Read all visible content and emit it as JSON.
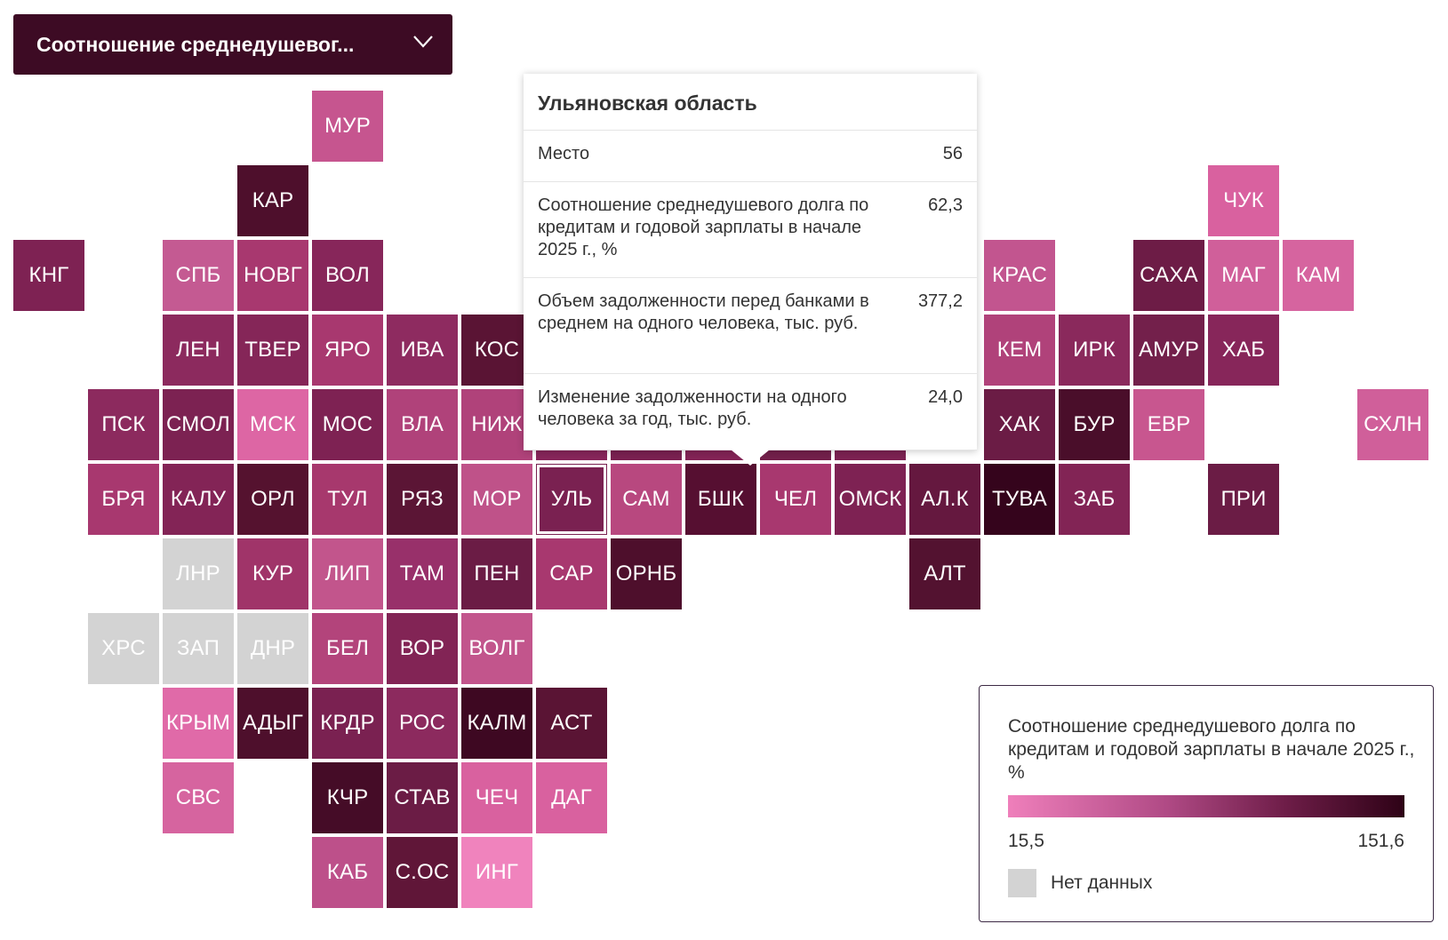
{
  "dropdown": {
    "label": "Соотношение среднедушевог...",
    "icon": "chevron-down-icon"
  },
  "colors": {
    "scale_min": "#ef7fbb",
    "scale_max": "#2e0216",
    "no_data": "#d3d3d3"
  },
  "map": {
    "tiles": [
      {
        "code": "МУР",
        "col": 4,
        "row": 0,
        "value": 40,
        "color": "#c6558f"
      },
      {
        "code": "КАР",
        "col": 3,
        "row": 1,
        "value": 120,
        "color": "#4e0f2c"
      },
      {
        "code": "ЧУК",
        "col": 16,
        "row": 1,
        "value": 30,
        "color": "#d9619f"
      },
      {
        "code": "КНГ",
        "col": 0,
        "row": 2,
        "value": 85,
        "color": "#7e2253"
      },
      {
        "code": "СПБ",
        "col": 2,
        "row": 2,
        "value": 45,
        "color": "#c45a92"
      },
      {
        "code": "НОВГ",
        "col": 3,
        "row": 2,
        "value": 62,
        "color": "#a8386f"
      },
      {
        "code": "ВОЛ",
        "col": 4,
        "row": 2,
        "value": 80,
        "color": "#87265a"
      },
      {
        "code": "КРАС",
        "col": 13,
        "row": 2,
        "value": 45,
        "color": "#c2558f"
      },
      {
        "code": "САХА",
        "col": 15,
        "row": 2,
        "value": 90,
        "color": "#6d1c46"
      },
      {
        "code": "МАГ",
        "col": 16,
        "row": 2,
        "value": 38,
        "color": "#d05f9a"
      },
      {
        "code": "КАМ",
        "col": 17,
        "row": 2,
        "value": 33,
        "color": "#d6649f"
      },
      {
        "code": "ЛЕН",
        "col": 2,
        "row": 3,
        "value": 78,
        "color": "#8c2a5e"
      },
      {
        "code": "ТВЕР",
        "col": 3,
        "row": 3,
        "value": 82,
        "color": "#852658"
      },
      {
        "code": "ЯРО",
        "col": 4,
        "row": 3,
        "value": 58,
        "color": "#a8386f"
      },
      {
        "code": "ИВА",
        "col": 5,
        "row": 3,
        "value": 75,
        "color": "#8e2b60"
      },
      {
        "code": "КОС",
        "col": 6,
        "row": 3,
        "value": 110,
        "color": "#5a1434"
      },
      {
        "code": "КЕМ",
        "col": 13,
        "row": 3,
        "value": 55,
        "color": "#b0427a"
      },
      {
        "code": "ИРК",
        "col": 14,
        "row": 3,
        "value": 75,
        "color": "#8a295c"
      },
      {
        "code": "АМУР",
        "col": 15,
        "row": 3,
        "value": 90,
        "color": "#73204b"
      },
      {
        "code": "ХАБ",
        "col": 16,
        "row": 3,
        "value": 80,
        "color": "#87265a"
      },
      {
        "code": "ПСК",
        "col": 1,
        "row": 4,
        "value": 78,
        "color": "#8c2a5e"
      },
      {
        "code": "СМОЛ",
        "col": 2,
        "row": 4,
        "value": 85,
        "color": "#7c2252"
      },
      {
        "code": "МСК",
        "col": 3,
        "row": 4,
        "value": 30,
        "color": "#dd66a4"
      },
      {
        "code": "МОС",
        "col": 4,
        "row": 4,
        "value": 85,
        "color": "#7e2253"
      },
      {
        "code": "ВЛА",
        "col": 5,
        "row": 4,
        "value": 55,
        "color": "#b0427a"
      },
      {
        "code": "НИЖ",
        "col": 6,
        "row": 4,
        "value": 55,
        "color": "#b0427a"
      },
      {
        "code": "",
        "col": 7,
        "row": 4,
        "value": 80,
        "color": "#87265a"
      },
      {
        "code": "",
        "col": 8,
        "row": 4,
        "value": 88,
        "color": "#7a2151"
      },
      {
        "code": "",
        "col": 9,
        "row": 4,
        "value": 80,
        "color": "#832456"
      },
      {
        "code": "",
        "col": 10,
        "row": 4,
        "value": 90,
        "color": "#73204b"
      },
      {
        "code": "",
        "col": 11,
        "row": 4,
        "value": 85,
        "color": "#7c2252"
      },
      {
        "code": "ХАК",
        "col": 13,
        "row": 4,
        "value": 95,
        "color": "#6b1c45"
      },
      {
        "code": "БУР",
        "col": 14,
        "row": 4,
        "value": 125,
        "color": "#4a0e2a"
      },
      {
        "code": "ЕВР",
        "col": 15,
        "row": 4,
        "value": 40,
        "color": "#c8568f"
      },
      {
        "code": "СХЛН",
        "col": 18,
        "row": 4,
        "value": 35,
        "color": "#d05f9a"
      },
      {
        "code": "БРЯ",
        "col": 1,
        "row": 5,
        "value": 58,
        "color": "#a8386f"
      },
      {
        "code": "КАЛУ",
        "col": 2,
        "row": 5,
        "value": 82,
        "color": "#832456"
      },
      {
        "code": "ОРЛ",
        "col": 3,
        "row": 5,
        "value": 115,
        "color": "#55122f"
      },
      {
        "code": "ТУЛ",
        "col": 4,
        "row": 5,
        "value": 60,
        "color": "#a7386d"
      },
      {
        "code": "РЯЗ",
        "col": 5,
        "row": 5,
        "value": 110,
        "color": "#5b1535"
      },
      {
        "code": "МОР",
        "col": 6,
        "row": 5,
        "value": 45,
        "color": "#bf5289"
      },
      {
        "code": "УЛЬ",
        "col": 7,
        "row": 5,
        "value": 62.3,
        "color": "#7a2151",
        "selected": true
      },
      {
        "code": "САМ",
        "col": 8,
        "row": 5,
        "value": 50,
        "color": "#b8487f"
      },
      {
        "code": "БШК",
        "col": 9,
        "row": 5,
        "value": 115,
        "color": "#560f31"
      },
      {
        "code": "ЧЕЛ",
        "col": 10,
        "row": 5,
        "value": 58,
        "color": "#a8386f"
      },
      {
        "code": "ОМСК",
        "col": 11,
        "row": 5,
        "value": 85,
        "color": "#7e2253"
      },
      {
        "code": "АЛ.К",
        "col": 12,
        "row": 5,
        "value": 100,
        "color": "#65183f"
      },
      {
        "code": "ТУВА",
        "col": 13,
        "row": 5,
        "value": 151.6,
        "color": "#35041c"
      },
      {
        "code": "ЗАБ",
        "col": 14,
        "row": 5,
        "value": 85,
        "color": "#822455"
      },
      {
        "code": "ПРИ",
        "col": 16,
        "row": 5,
        "value": 90,
        "color": "#6b1c45"
      },
      {
        "code": "ЛНР",
        "col": 2,
        "row": 6,
        "value": null,
        "color": "#d3d3d3"
      },
      {
        "code": "КУР",
        "col": 3,
        "row": 6,
        "value": 65,
        "color": "#a03469"
      },
      {
        "code": "ЛИП",
        "col": 4,
        "row": 6,
        "value": 45,
        "color": "#c2558c"
      },
      {
        "code": "ТАМ",
        "col": 5,
        "row": 6,
        "value": 70,
        "color": "#98306a"
      },
      {
        "code": "ПЕН",
        "col": 6,
        "row": 6,
        "value": 95,
        "color": "#6b1c45"
      },
      {
        "code": "САР",
        "col": 7,
        "row": 6,
        "value": 58,
        "color": "#a8386f"
      },
      {
        "code": "ОРНБ",
        "col": 8,
        "row": 6,
        "value": 120,
        "color": "#4e0f2c"
      },
      {
        "code": "АЛТ",
        "col": 12,
        "row": 6,
        "value": 120,
        "color": "#531230"
      },
      {
        "code": "ХРС",
        "col": 1,
        "row": 7,
        "value": null,
        "color": "#d3d3d3"
      },
      {
        "code": "ЗАП",
        "col": 2,
        "row": 7,
        "value": null,
        "color": "#d3d3d3"
      },
      {
        "code": "ДНР",
        "col": 3,
        "row": 7,
        "value": null,
        "color": "#d3d3d3"
      },
      {
        "code": "БЕЛ",
        "col": 4,
        "row": 7,
        "value": 55,
        "color": "#b3447b"
      },
      {
        "code": "ВОР",
        "col": 5,
        "row": 7,
        "value": 85,
        "color": "#822455"
      },
      {
        "code": "ВОЛГ",
        "col": 6,
        "row": 7,
        "value": 45,
        "color": "#c2558c"
      },
      {
        "code": "КРЫМ",
        "col": 2,
        "row": 8,
        "value": 25,
        "color": "#e06aa8"
      },
      {
        "code": "АДЫГ",
        "col": 3,
        "row": 8,
        "value": 120,
        "color": "#4e0f2c"
      },
      {
        "code": "КРДР",
        "col": 4,
        "row": 8,
        "value": 85,
        "color": "#7a2151"
      },
      {
        "code": "РОС",
        "col": 5,
        "row": 8,
        "value": 75,
        "color": "#8c2a5e"
      },
      {
        "code": "КАЛМ",
        "col": 6,
        "row": 8,
        "value": 140,
        "color": "#3e0822"
      },
      {
        "code": "АСТ",
        "col": 7,
        "row": 8,
        "value": 110,
        "color": "#5a1434"
      },
      {
        "code": "СВС",
        "col": 2,
        "row": 9,
        "value": 35,
        "color": "#d6649f"
      },
      {
        "code": "КЧР",
        "col": 4,
        "row": 9,
        "value": 125,
        "color": "#450c27"
      },
      {
        "code": "СТАВ",
        "col": 5,
        "row": 9,
        "value": 95,
        "color": "#6b1c45"
      },
      {
        "code": "ЧЕЧ",
        "col": 6,
        "row": 9,
        "value": 30,
        "color": "#d9619f"
      },
      {
        "code": "ДАГ",
        "col": 7,
        "row": 9,
        "value": 30,
        "color": "#d9619f"
      },
      {
        "code": "КАБ",
        "col": 4,
        "row": 10,
        "value": 48,
        "color": "#bd508a"
      },
      {
        "code": "С.ОС",
        "col": 5,
        "row": 10,
        "value": 105,
        "color": "#601638"
      },
      {
        "code": "ИНГ",
        "col": 6,
        "row": 10,
        "value": 20,
        "color": "#f083bd"
      }
    ]
  },
  "tooltip": {
    "title": "Ульяновская область",
    "rows": [
      {
        "label": "Место",
        "value": "56"
      },
      {
        "label": "Соотношение среднедушевого долга по кредитам и годовой зарплаты в начале 2025 г., %",
        "value": "62,3"
      },
      {
        "label": "Объем задолженности перед банками в среднем на одного человека, тыс. руб.",
        "value": "377,2"
      },
      {
        "label": "Изменение задолженности на одного человека за год, тыс. руб.",
        "value": "24,0"
      }
    ]
  },
  "legend": {
    "title": "Соотношение среднедушевого долга по кредитам и годовой зарплаты в начале 2025 г., %",
    "min": "15,5",
    "max": "151,6",
    "no_data": "Нет данных"
  }
}
